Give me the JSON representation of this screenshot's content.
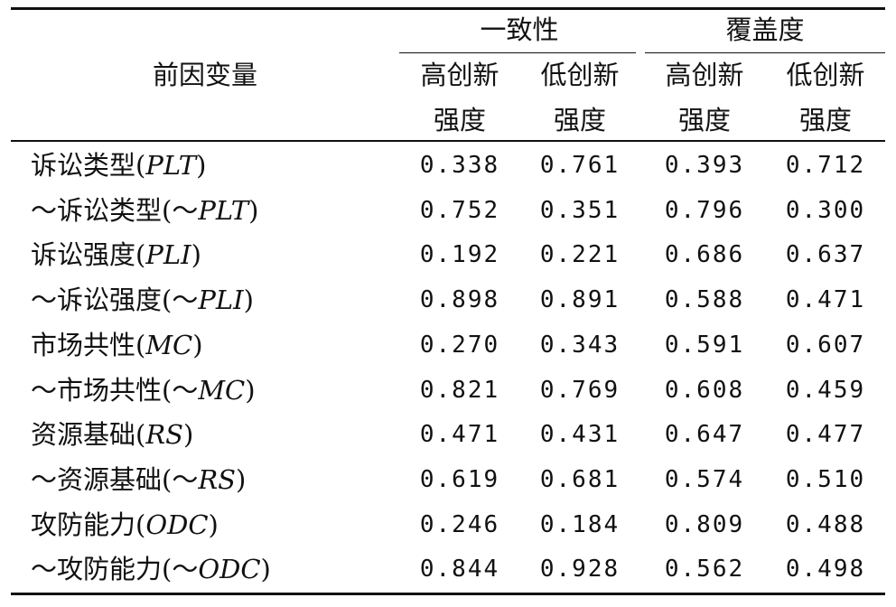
{
  "header": {
    "antecedent_label": "前因变量",
    "groups": [
      {
        "label": "一致性",
        "columns": [
          {
            "line1": "高创新",
            "line2": "强度"
          },
          {
            "line1": "低创新",
            "line2": "强度"
          }
        ]
      },
      {
        "label": "覆盖度",
        "columns": [
          {
            "line1": "高创新",
            "line2": "强度"
          },
          {
            "line1": "低创新",
            "line2": "强度"
          }
        ]
      }
    ]
  },
  "rows": [
    {
      "prefix": "诉讼类型(",
      "code": "PLT",
      "suffix": ")",
      "values": [
        "0.338",
        "0.761",
        "0.393",
        "0.712"
      ]
    },
    {
      "prefix": "～诉讼类型(～",
      "code": "PLT",
      "suffix": ")",
      "values": [
        "0.752",
        "0.351",
        "0.796",
        "0.300"
      ]
    },
    {
      "prefix": "诉讼强度(",
      "code": "PLI",
      "suffix": ")",
      "values": [
        "0.192",
        "0.221",
        "0.686",
        "0.637"
      ]
    },
    {
      "prefix": "～诉讼强度(～",
      "code": "PLI",
      "suffix": ")",
      "values": [
        "0.898",
        "0.891",
        "0.588",
        "0.471"
      ]
    },
    {
      "prefix": "市场共性(",
      "code": "MC",
      "suffix": ")",
      "values": [
        "0.270",
        "0.343",
        "0.591",
        "0.607"
      ]
    },
    {
      "prefix": "～市场共性(～",
      "code": "MC",
      "suffix": ")",
      "values": [
        "0.821",
        "0.769",
        "0.608",
        "0.459"
      ]
    },
    {
      "prefix": "资源基础(",
      "code": "RS",
      "suffix": ")",
      "values": [
        "0.471",
        "0.431",
        "0.647",
        "0.477"
      ]
    },
    {
      "prefix": "～资源基础(～",
      "code": "RS",
      "suffix": ")",
      "values": [
        "0.619",
        "0.681",
        "0.574",
        "0.510"
      ]
    },
    {
      "prefix": "攻防能力(",
      "code": "ODC",
      "suffix": ")",
      "values": [
        "0.246",
        "0.184",
        "0.809",
        "0.488"
      ]
    },
    {
      "prefix": "～攻防能力(～",
      "code": "ODC",
      "suffix": ")",
      "values": [
        "0.844",
        "0.928",
        "0.562",
        "0.498"
      ]
    }
  ]
}
